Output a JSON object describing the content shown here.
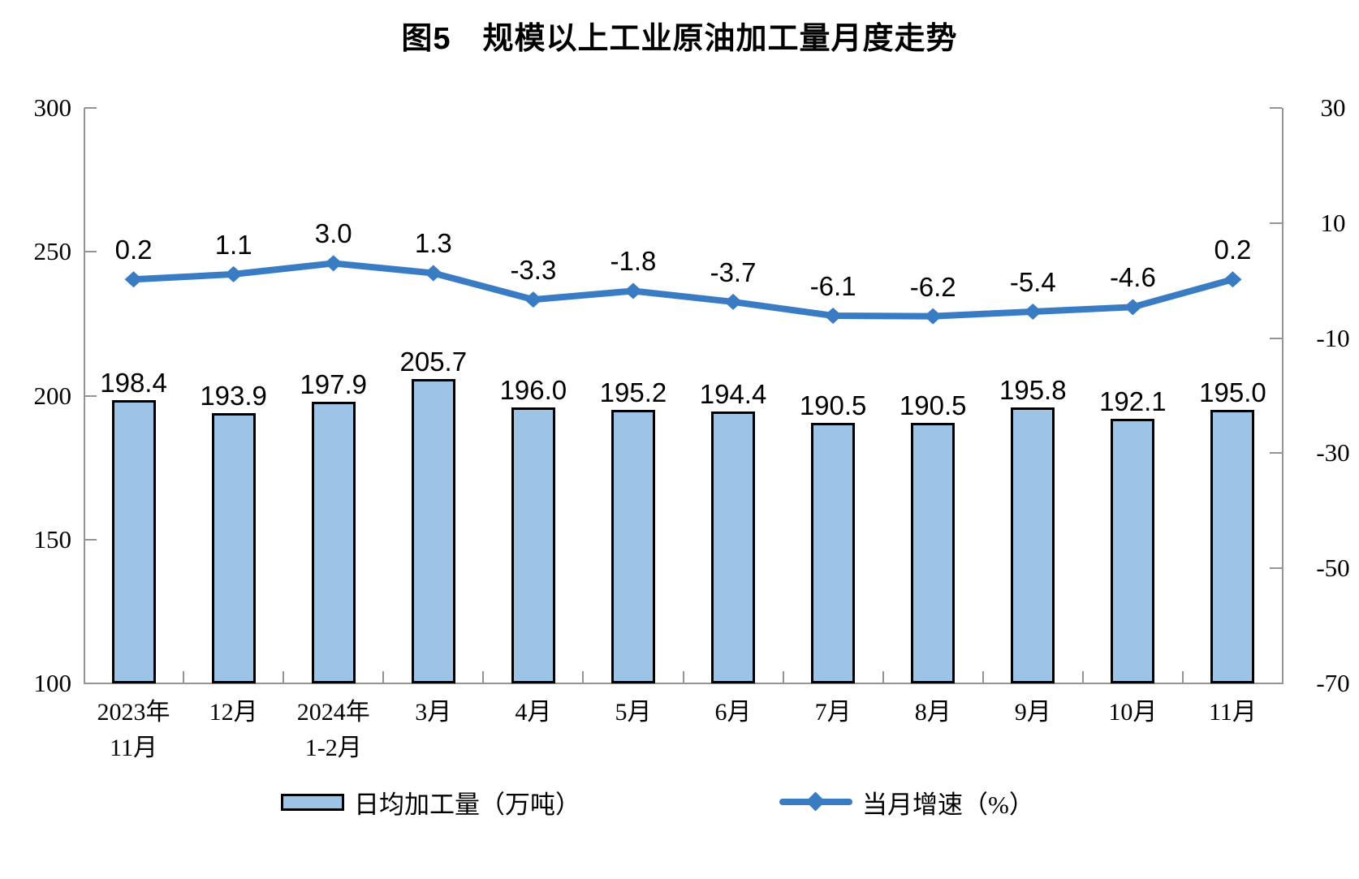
{
  "title": "图5　规模以上工业原油加工量月度走势",
  "legend": {
    "bar_label": "日均加工量（万吨）",
    "line_label": "当月增速（%）"
  },
  "colors": {
    "bar_fill": "#9DC3E6",
    "bar_border": "#000000",
    "line": "#3A7CC4",
    "axis": "#949494",
    "text": "#000000"
  },
  "chart_data": {
    "type": "bar+line combo",
    "title": "图5　规模以上工业原油加工量月度走势",
    "categories": [
      "2023年\n11月",
      "12月",
      "2024年\n1-2月",
      "3月",
      "4月",
      "5月",
      "6月",
      "7月",
      "8月",
      "9月",
      "10月",
      "11月"
    ],
    "series": [
      {
        "name": "日均加工量（万吨）",
        "type": "bar",
        "axis": "left",
        "values": [
          198.4,
          193.9,
          197.9,
          205.7,
          196.0,
          195.2,
          194.4,
          190.5,
          190.5,
          195.8,
          192.1,
          195.0
        ]
      },
      {
        "name": "当月增速（%）",
        "type": "line",
        "axis": "right",
        "values": [
          0.2,
          1.1,
          3.0,
          1.3,
          -3.3,
          -1.8,
          -3.7,
          -6.1,
          -6.2,
          -5.4,
          -4.6,
          0.2
        ]
      }
    ],
    "left_axis": {
      "min": 100,
      "max": 300,
      "ticks": [
        300,
        250,
        200,
        150,
        100
      ]
    },
    "right_axis": {
      "min": -70,
      "max": 30,
      "ticks": [
        30,
        10,
        -10,
        -30,
        -50,
        -70
      ]
    },
    "grid": false,
    "data_labels": true,
    "legend_position": "bottom"
  }
}
